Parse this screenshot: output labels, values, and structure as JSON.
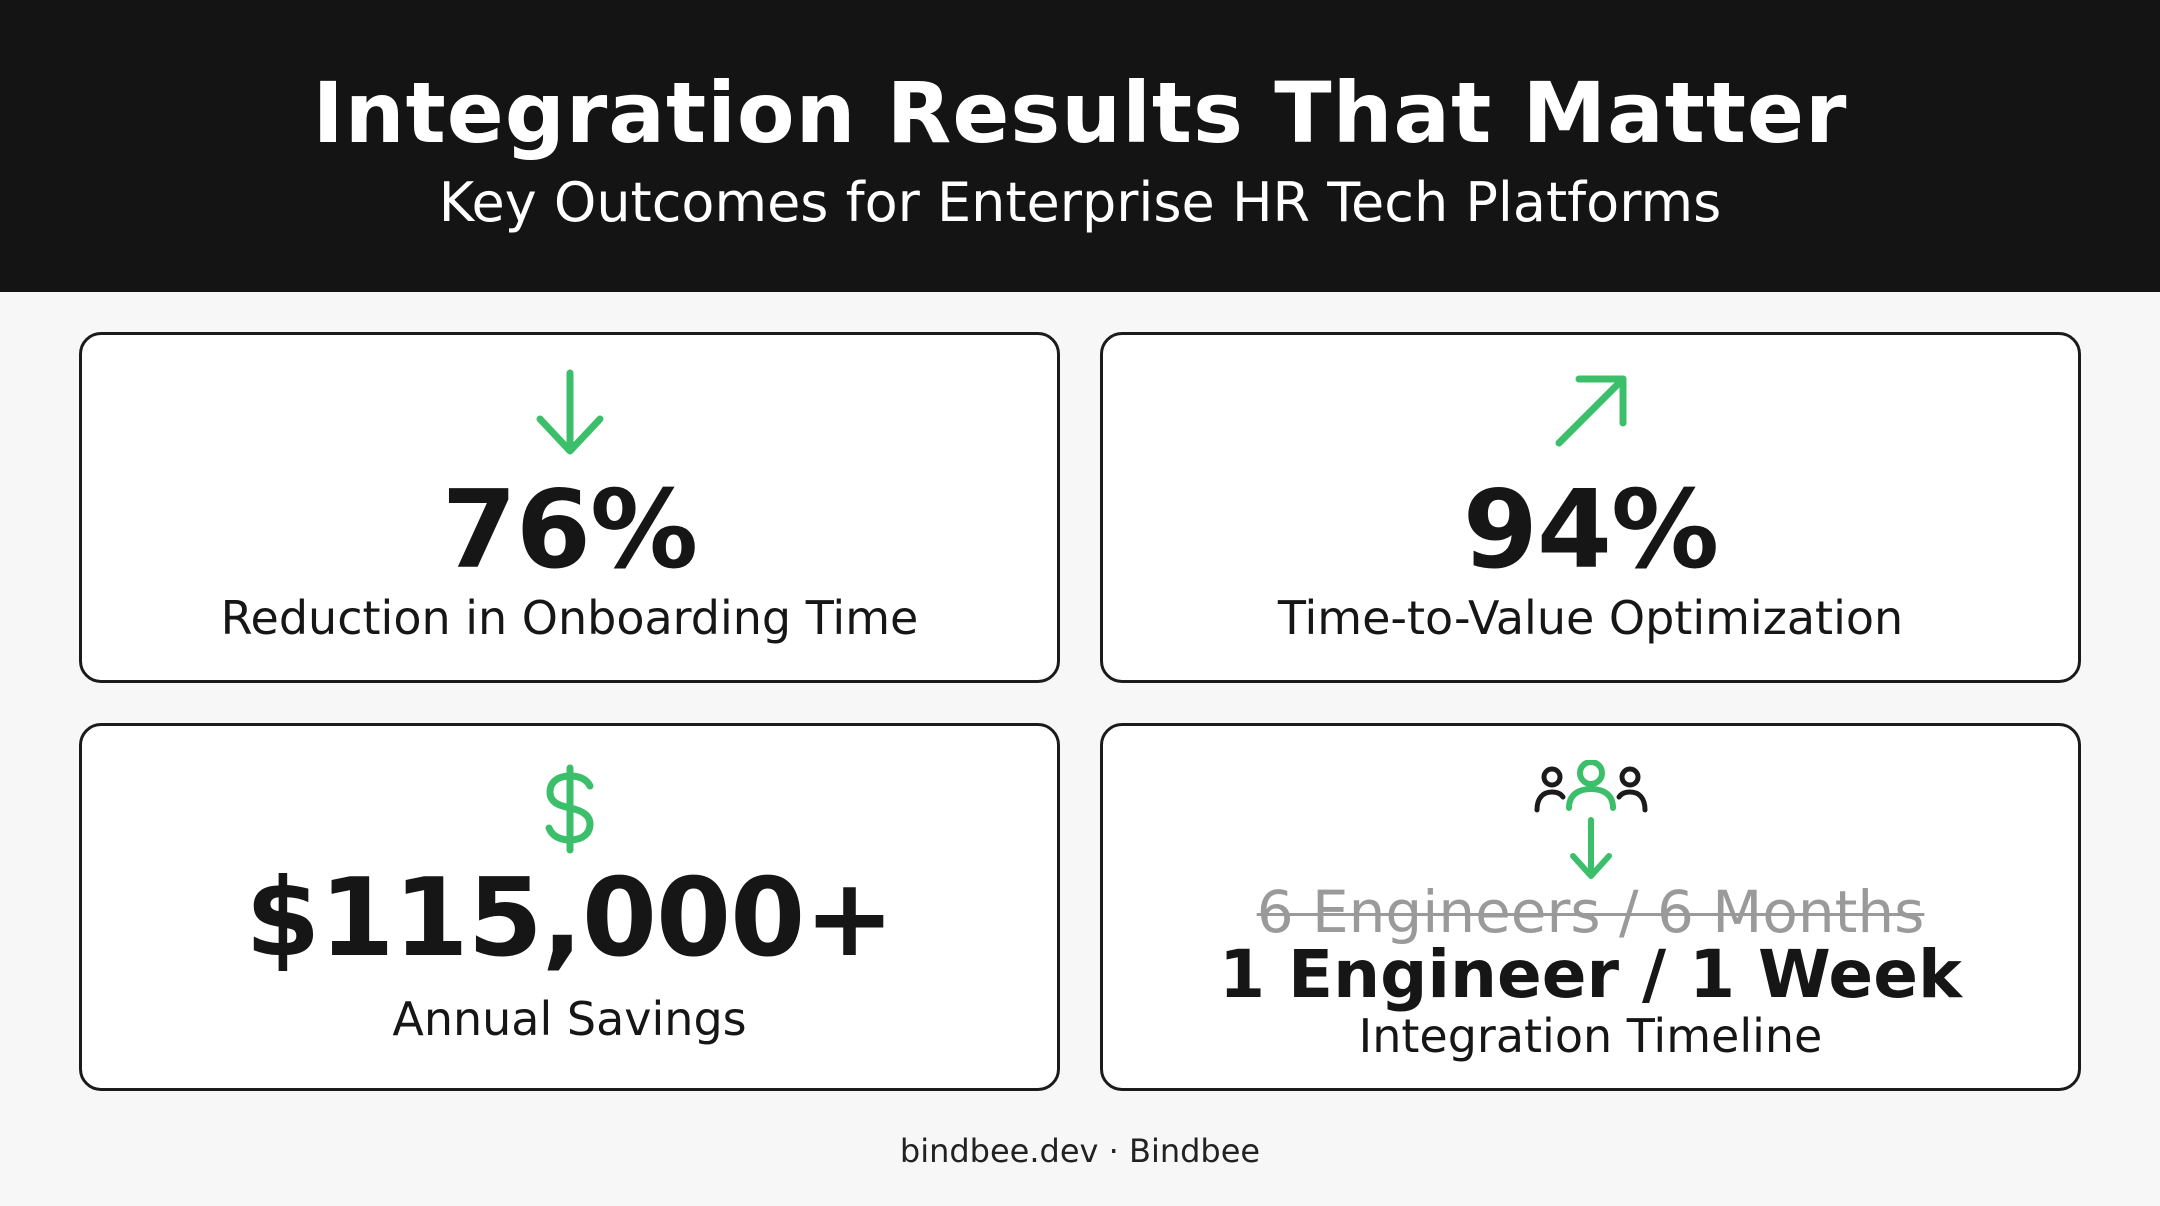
{
  "header": {
    "title": "Integration Results That Matter",
    "subtitle": "Key Outcomes for Enterprise HR Tech Platforms"
  },
  "cards": [
    {
      "icon": "arrow-down-icon",
      "value": "76%",
      "label": "Reduction in Onboarding Time"
    },
    {
      "icon": "arrow-up-right-icon",
      "value": "94%",
      "label": "Time-to-Value Optimization"
    },
    {
      "icon": "dollar-icon",
      "value": "$115,000+",
      "label": "Annual Savings"
    },
    {
      "icon": "team-reduction-icon",
      "previous": "6 Engineers / 6 Months",
      "value": "1 Engineer / 1 Week",
      "label": "Integration Timeline"
    }
  ],
  "footer": {
    "text": "bindbee.dev · Bindbee"
  },
  "colors": {
    "header_background": "#141414",
    "accent_green": "#3cbf6a",
    "card_border": "#1b1b1b",
    "page_background": "#f7f7f7",
    "strike_text": "#9a9a9a"
  }
}
